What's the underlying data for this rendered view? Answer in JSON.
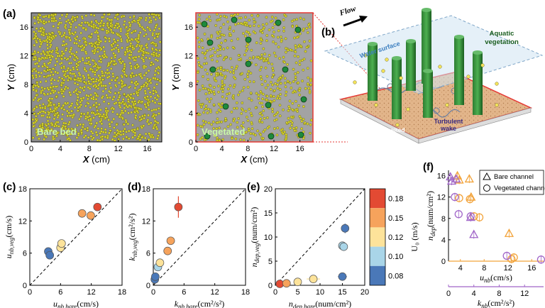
{
  "panels": {
    "a": {
      "label": "(a)",
      "left_map": {
        "caption": "Bare bed"
      },
      "right_map": {
        "caption": "Vegetated"
      },
      "ylabel_var": "Y",
      "ylabel_unit": " (cm)",
      "xlabel_var": "X",
      "xlabel_unit": " (cm)",
      "ticks": [
        "0",
        "4",
        "8",
        "12",
        "16"
      ]
    },
    "b": {
      "label": "(b)",
      "flow": "Flow",
      "water_surface": "Water surface",
      "aquatic_vegetation": [
        "Aquatic",
        "vegetation"
      ],
      "deposited_particle": [
        "Deposited",
        "particle"
      ],
      "turbulent_wake": [
        "Turbulent",
        "wake"
      ]
    },
    "c": {
      "label": "(c)"
    },
    "d": {
      "label": "(d)"
    },
    "e": {
      "label": "(e)"
    },
    "f": {
      "label": "(f)"
    }
  },
  "colorbar": {
    "label": "U₀ (m/s)",
    "ticks": [
      "0.18",
      "0.15",
      "0.12",
      "0.10",
      "0.08"
    ],
    "colors": [
      "#e34a33",
      "#f6a35c",
      "#fde39a",
      "#a9d5e8",
      "#4a78b8"
    ]
  },
  "chart_data": [
    {
      "id": "c",
      "type": "scatter",
      "xlabel": "u_nb,bare (cm/s)",
      "ylabel": "u_nb,veg (cm/s)",
      "xlabel_main": "u",
      "xlabel_sub": "nb,bare",
      "xlabel_unit": "(cm/s)",
      "ylabel_main": "u",
      "ylabel_sub": "nb,veg",
      "ylabel_unit": "(cm/s)",
      "xlim": [
        0,
        18
      ],
      "ylim": [
        0,
        18
      ],
      "xticks": [
        "0",
        "6",
        "12",
        "18"
      ],
      "yticks": [
        "0",
        "6",
        "12",
        "18"
      ],
      "reference_line": "1:1",
      "points": [
        {
          "x": 3.6,
          "y": 6.3,
          "u0": "0.08"
        },
        {
          "x": 3.9,
          "y": 5.6,
          "u0": "0.08"
        },
        {
          "x": 6.0,
          "y": 7.0,
          "u0": "0.12"
        },
        {
          "x": 6.2,
          "y": 7.8,
          "u0": "0.12"
        },
        {
          "x": 10.2,
          "y": 13.4,
          "u0": "0.15"
        },
        {
          "x": 11.9,
          "y": 13.0,
          "u0": "0.15"
        },
        {
          "x": 13.2,
          "y": 14.6,
          "u0": "0.18"
        }
      ]
    },
    {
      "id": "d",
      "type": "scatter",
      "xlabel": "k_nb,bare (cm²/s²)",
      "ylabel": "k_nb,veg (cm²/s²)",
      "xlabel_main": "k",
      "xlabel_sub": "nb,bare",
      "xlabel_unit": "(cm²/s²)",
      "ylabel_main": "k",
      "ylabel_sub": "nb,veg",
      "ylabel_unit": "(cm²/s²)",
      "xlim": [
        0,
        18
      ],
      "ylim": [
        0,
        18
      ],
      "xticks": [
        "0",
        "6",
        "12",
        "18"
      ],
      "yticks": [
        "0",
        "6",
        "12",
        "18"
      ],
      "reference_line": "1:1",
      "points": [
        {
          "x": 0.3,
          "y": 1.1,
          "u0": "0.08"
        },
        {
          "x": 0.4,
          "y": 1.6,
          "u0": "0.08"
        },
        {
          "x": 0.9,
          "y": 3.4,
          "u0": "0.10"
        },
        {
          "x": 1.3,
          "y": 4.2,
          "u0": "0.12"
        },
        {
          "x": 2.8,
          "y": 6.4,
          "u0": "0.15"
        },
        {
          "x": 3.4,
          "y": 8.3,
          "u0": "0.15"
        },
        {
          "x": 4.9,
          "y": 14.6,
          "u0": "0.18",
          "err": 2.0
        }
      ]
    },
    {
      "id": "e",
      "type": "scatter",
      "xlabel": "n_dep,bare (num/cm²)",
      "ylabel": "n_dep,veg (num/cm²)",
      "xlabel_main": "n",
      "xlabel_sub": "dep,bare",
      "xlabel_unit": "(num/cm²)",
      "ylabel_main": "n",
      "ylabel_sub": "dep,veg",
      "ylabel_unit": "(num/cm²)",
      "xlim": [
        0,
        20
      ],
      "ylim": [
        0,
        20
      ],
      "xticks": [
        "0",
        "5",
        "10",
        "15",
        "20"
      ],
      "yticks": [
        "0",
        "5",
        "10",
        "15",
        "20"
      ],
      "reference_line": "1:1",
      "points": [
        {
          "x": 1.0,
          "y": 0.3,
          "u0": "0.18"
        },
        {
          "x": 2.5,
          "y": 0.4,
          "u0": "0.15"
        },
        {
          "x": 5.0,
          "y": 0.7,
          "u0": "0.12"
        },
        {
          "x": 8.5,
          "y": 1.3,
          "u0": "0.12",
          "xerr": 1.5
        },
        {
          "x": 15.0,
          "y": 1.8,
          "u0": "0.08",
          "xerr": 1.0
        },
        {
          "x": 15.0,
          "y": 8.2,
          "u0": "0.10"
        },
        {
          "x": 15.3,
          "y": 8.0,
          "u0": "0.10"
        },
        {
          "x": 15.6,
          "y": 11.8,
          "u0": "0.08",
          "xerr": 0.8,
          "yerr": 1.0
        }
      ]
    },
    {
      "id": "f",
      "type": "scatter",
      "ylabel": "n_dep (num/cm²)",
      "ylabel_main": "n",
      "ylabel_sub": "dep",
      "ylabel_unit": "(num/cm²)",
      "xlabel_orange": "u_nb (cm/s)",
      "xlabel_purple": "k_nb (cm²/s²)",
      "xo_main": "u",
      "xo_sub": "nb",
      "xo_unit": "(cm/s)",
      "xp_main": "k",
      "xp_sub": "nb",
      "xp_unit": "(cm²/s²)",
      "ylim": [
        0,
        17
      ],
      "yticks": [
        "0",
        "4",
        "8",
        "12",
        "16"
      ],
      "orange_xlim": [
        2,
        18
      ],
      "orange_xticks": [
        "4",
        "8",
        "12",
        "16"
      ],
      "orange_color": "#f2a33a",
      "purple_xlim": [
        0,
        15
      ],
      "purple_xticks": [
        "0",
        "4",
        "8",
        "12"
      ],
      "purple_color": "#a065c8",
      "legend": [
        "Bare channel",
        "Vegetated channel"
      ],
      "orange_series": [
        {
          "x": 3.5,
          "y": 16.0,
          "m": "tri"
        },
        {
          "x": 3.8,
          "y": 15.2,
          "m": "tri"
        },
        {
          "x": 5.5,
          "y": 15.4,
          "m": "tri"
        },
        {
          "x": 5.8,
          "y": 12.0,
          "m": "tri"
        },
        {
          "x": 12.2,
          "y": 5.2,
          "m": "tri"
        },
        {
          "x": 3.8,
          "y": 11.8,
          "m": "circ"
        },
        {
          "x": 5.6,
          "y": 11.6,
          "m": "circ"
        },
        {
          "x": 6.3,
          "y": 8.4,
          "m": "circ"
        },
        {
          "x": 7.2,
          "y": 8.2,
          "m": "circ"
        },
        {
          "x": 12.6,
          "y": 0.4,
          "m": "circ"
        },
        {
          "x": 13.0,
          "y": 0.7,
          "m": "circ"
        }
      ],
      "purple_series": [
        {
          "x": 0.3,
          "y": 15.8,
          "m": "tri"
        },
        {
          "x": 0.5,
          "y": 15.0,
          "m": "tri"
        },
        {
          "x": 1.2,
          "y": 15.4,
          "m": "tri"
        },
        {
          "x": 3.5,
          "y": 8.2,
          "m": "tri"
        },
        {
          "x": 4.0,
          "y": 5.0,
          "m": "tri"
        },
        {
          "x": 1.0,
          "y": 12.0,
          "m": "circ"
        },
        {
          "x": 1.6,
          "y": 8.8,
          "m": "circ"
        },
        {
          "x": 3.5,
          "y": 8.4,
          "m": "circ"
        },
        {
          "x": 9.2,
          "y": 1.0,
          "m": "circ"
        },
        {
          "x": 14.6,
          "y": 0.3,
          "m": "circ"
        }
      ]
    }
  ]
}
